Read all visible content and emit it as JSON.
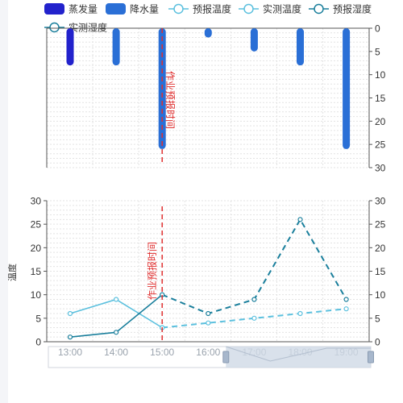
{
  "chart_data": [
    {
      "type": "bar",
      "name": "top-precipitation-chart",
      "categories": [
        "13:00",
        "14:00",
        "15:00",
        "16:00",
        "17:00",
        "18:00",
        "19:00"
      ],
      "series": [
        {
          "name": "蒸发量",
          "color": "#2222cc",
          "values": [
            8,
            null,
            null,
            null,
            null,
            null,
            null
          ]
        },
        {
          "name": "降水量",
          "color": "#2a6fd6",
          "values": [
            null,
            8,
            26,
            2,
            5,
            8,
            26
          ]
        }
      ],
      "ylim": [
        0,
        30
      ],
      "yticks": [
        0,
        5,
        10,
        15,
        20,
        25,
        30
      ],
      "y_inverted": true,
      "yaxis_side": "right",
      "ylabel": "",
      "annotation": {
        "text": "作业预报时间",
        "x": "15:00",
        "color": "#e03030"
      }
    },
    {
      "type": "line",
      "name": "bottom-temperature-chart",
      "categories": [
        "13:00",
        "14:00",
        "15:00",
        "16:00",
        "17:00",
        "18:00",
        "19:00"
      ],
      "series": [
        {
          "name": "预报温度",
          "color": "#5bc0de",
          "style": "dashed",
          "values": [
            null,
            null,
            3,
            4,
            5,
            6,
            7
          ]
        },
        {
          "name": "实测温度",
          "color": "#5bc0de",
          "style": "solid",
          "values": [
            6,
            9,
            3,
            null,
            null,
            null,
            null
          ]
        },
        {
          "name": "预报湿度",
          "color": "#1a7f9c",
          "style": "dashed",
          "values": [
            null,
            null,
            10,
            6,
            9,
            26,
            9
          ]
        },
        {
          "name": "实测湿度",
          "color": "#1a7f9c",
          "style": "solid",
          "values": [
            1,
            2,
            10,
            null,
            null,
            null,
            null
          ]
        }
      ],
      "ylim": [
        0,
        30
      ],
      "yticks": [
        0,
        5,
        10,
        15,
        20,
        25,
        30
      ],
      "ylabel": "温度",
      "annotation": {
        "text": "作业预报时间",
        "x": "15:00",
        "color": "#e03030"
      }
    }
  ],
  "legend": {
    "items": [
      {
        "label": "蒸发量",
        "symbol": "rect",
        "color": "#2222cc"
      },
      {
        "label": "降水量",
        "symbol": "rect",
        "color": "#2a6fd6"
      },
      {
        "label": "预报温度",
        "symbol": "line-circle",
        "color": "#5bc0de"
      },
      {
        "label": "实测温度",
        "symbol": "line-circle",
        "color": "#5bc0de"
      },
      {
        "label": "预报湿度",
        "symbol": "line-circle",
        "color": "#1a7f9c"
      },
      {
        "label": "实测湿度",
        "symbol": "line-circle",
        "color": "#1a7f9c"
      }
    ]
  },
  "slider": {
    "range_start": "16:00",
    "range_end": "19:00",
    "selected_color": "#d0d9e6"
  }
}
